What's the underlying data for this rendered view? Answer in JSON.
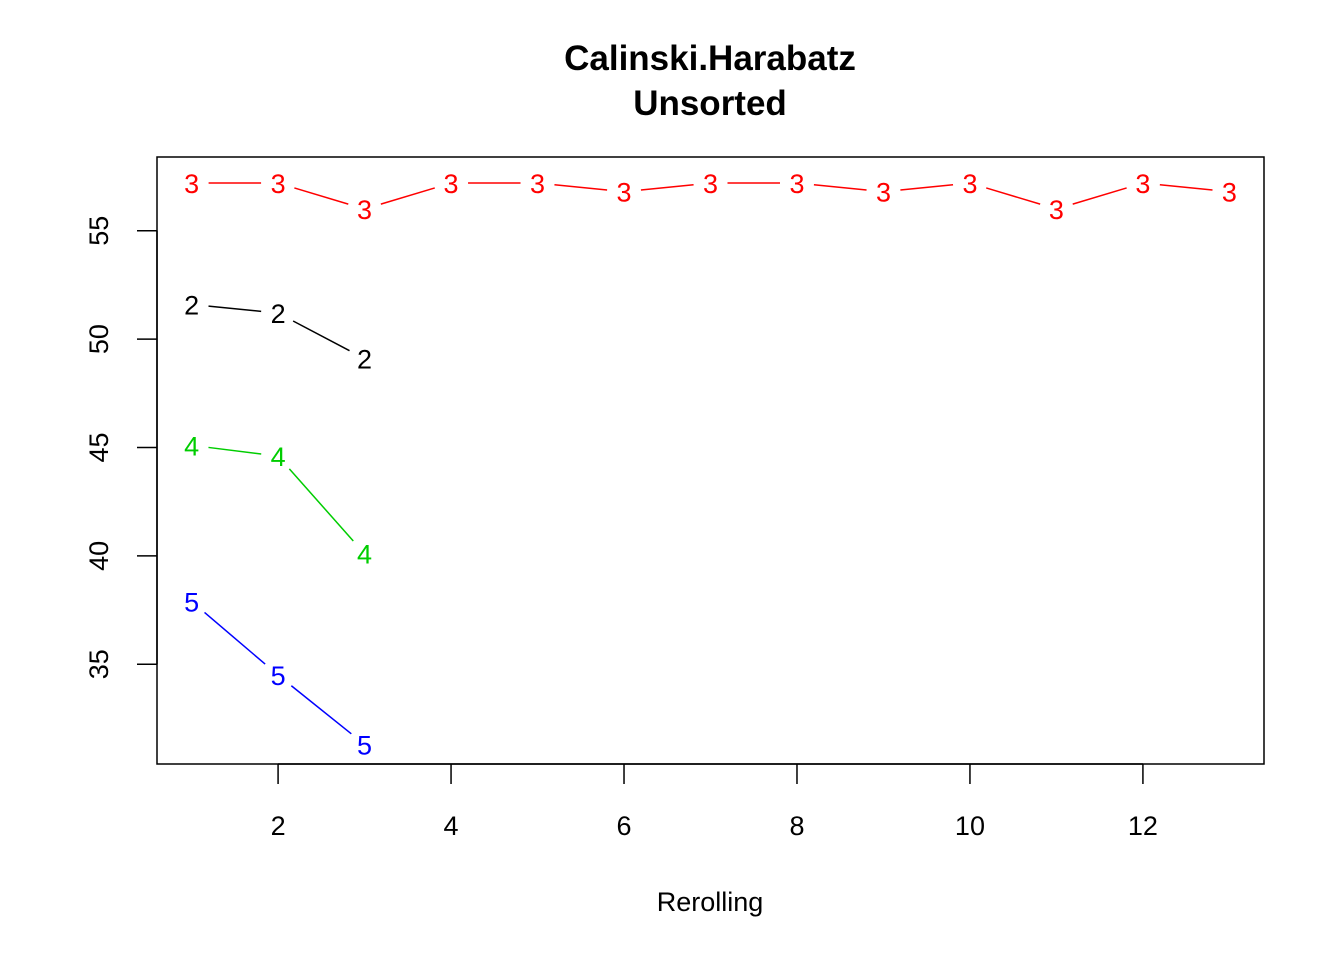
{
  "chart_data": {
    "type": "line",
    "title": "Calinski.Harabatz",
    "subtitle": "Unsorted",
    "xlabel": "Rerolling",
    "ylabel": "",
    "xlim": [
      0.6,
      13.4
    ],
    "ylim": [
      30.4,
      58.4
    ],
    "x_ticks": [
      2,
      4,
      6,
      8,
      10,
      12
    ],
    "y_ticks": [
      35,
      40,
      45,
      50,
      55
    ],
    "grid": false,
    "legend": "none",
    "series": [
      {
        "marker": "2",
        "color": "#000000",
        "x": [
          1,
          2,
          3
        ],
        "y": [
          51.6,
          51.2,
          49.1
        ]
      },
      {
        "marker": "3",
        "color": "#ff0000",
        "x": [
          1,
          2,
          3,
          4,
          5,
          6,
          7,
          8,
          9,
          10,
          11,
          12,
          13
        ],
        "y": [
          57.2,
          57.2,
          56.0,
          57.2,
          57.2,
          56.8,
          57.2,
          57.2,
          56.8,
          57.2,
          56.0,
          57.2,
          56.8
        ]
      },
      {
        "marker": "4",
        "color": "#00cd00",
        "x": [
          1,
          2,
          3
        ],
        "y": [
          45.1,
          44.6,
          40.1
        ]
      },
      {
        "marker": "5",
        "color": "#0000ff",
        "x": [
          1,
          2,
          3
        ],
        "y": [
          37.9,
          34.5,
          31.3
        ]
      }
    ]
  }
}
